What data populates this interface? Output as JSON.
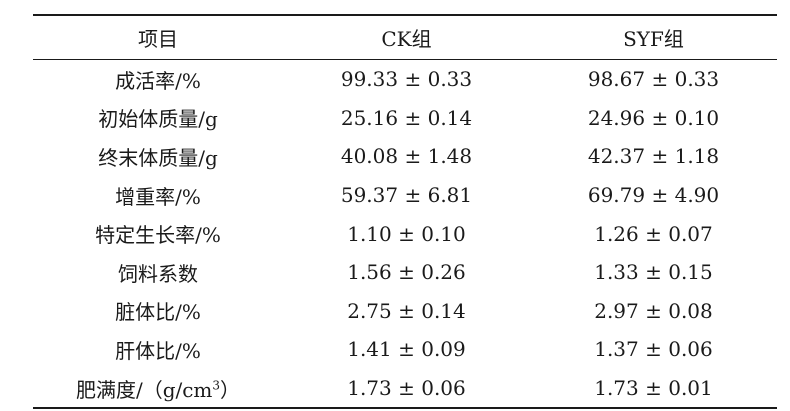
{
  "table": {
    "headers": [
      "项目",
      "CK组",
      "SYF组"
    ],
    "rows": [
      {
        "item": "成活率/%",
        "ck": "99.33 ± 0.33",
        "syf": "98.67 ± 0.33"
      },
      {
        "item": "初始体质量/g",
        "ck": "25.16 ± 0.14",
        "syf": "24.96 ± 0.10"
      },
      {
        "item": "终末体质量/g",
        "ck": "40.08 ± 1.48",
        "syf": "42.37 ± 1.18"
      },
      {
        "item": "增重率/%",
        "ck": "59.37 ± 6.81",
        "syf": "69.79 ± 4.90"
      },
      {
        "item": "特定生长率/%",
        "ck": "1.10 ± 0.10",
        "syf": "1.26 ± 0.07"
      },
      {
        "item": "饲料系数",
        "ck": "1.56 ± 0.26",
        "syf": "1.33 ± 0.15"
      },
      {
        "item": "脏体比/%",
        "ck": "2.75 ± 0.14",
        "syf": "2.97 ± 0.08"
      },
      {
        "item": "肝体比/%",
        "ck": "1.41 ± 0.09",
        "syf": "1.37 ± 0.06"
      }
    ],
    "last_row": {
      "item_prefix": "肥满度/（g/cm",
      "item_sup": "3",
      "item_suffix": "）",
      "ck": "1.73 ± 0.06",
      "syf": "1.73 ± 0.01"
    }
  }
}
